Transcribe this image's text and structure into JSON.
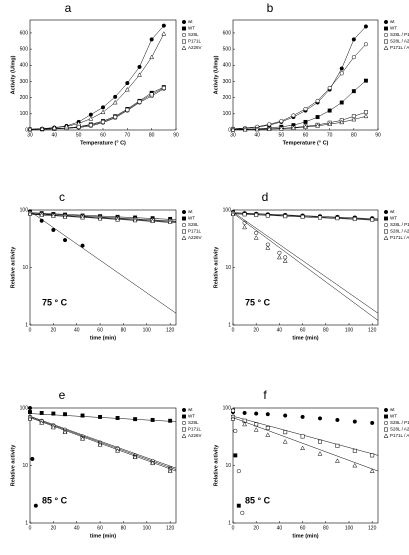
{
  "chart_data": [
    {
      "type": "line",
      "title": "a",
      "xlabel": "Temperature (° C)",
      "ylabel": "Activity (U/mg)",
      "x": [
        30,
        35,
        40,
        45,
        50,
        55,
        60,
        65,
        70,
        75,
        80,
        85
      ],
      "xlim": [
        30,
        90
      ],
      "xticks": [
        30,
        40,
        50,
        60,
        70,
        80,
        90
      ],
      "ylim": [
        0,
        680
      ],
      "yticks": [
        0,
        100,
        200,
        300,
        400,
        500,
        600
      ],
      "series": [
        {
          "name": "wt",
          "marker": "circle-filled",
          "color": "#000000",
          "values": [
            5,
            8,
            15,
            25,
            50,
            95,
            140,
            205,
            290,
            390,
            560,
            645
          ]
        },
        {
          "name": "WT",
          "marker": "square-filled",
          "color": "#000000",
          "values": [
            3,
            5,
            8,
            12,
            20,
            35,
            55,
            85,
            130,
            180,
            230,
            265
          ]
        },
        {
          "name": "S28L",
          "marker": "circle-open",
          "color": "#000000",
          "values": [
            3,
            5,
            7,
            10,
            15,
            25,
            45,
            75,
            120,
            170,
            210,
            255
          ]
        },
        {
          "name": "P171L",
          "marker": "square-open",
          "color": "#000000",
          "values": [
            3,
            5,
            8,
            12,
            20,
            30,
            50,
            80,
            125,
            175,
            220,
            260
          ]
        },
        {
          "name": "A226V",
          "marker": "triangle-open",
          "color": "#000000",
          "values": [
            5,
            8,
            14,
            22,
            40,
            70,
            110,
            170,
            250,
            340,
            450,
            595
          ]
        }
      ]
    },
    {
      "type": "line",
      "title": "b",
      "xlabel": "Temperature (° C)",
      "ylabel": "Activity (U/mg)",
      "x": [
        30,
        35,
        40,
        45,
        50,
        55,
        60,
        65,
        70,
        75,
        80,
        85
      ],
      "xlim": [
        30,
        90
      ],
      "xticks": [
        30,
        40,
        50,
        60,
        70,
        80,
        90
      ],
      "ylim": [
        0,
        680
      ],
      "yticks": [
        0,
        100,
        200,
        300,
        400,
        500,
        600
      ],
      "series": [
        {
          "name": "wt",
          "marker": "circle-filled",
          "color": "#000000",
          "values": [
            5,
            10,
            18,
            30,
            50,
            80,
            120,
            170,
            250,
            380,
            560,
            640
          ]
        },
        {
          "name": "WT",
          "marker": "square-filled",
          "color": "#000000",
          "values": [
            3,
            5,
            8,
            12,
            20,
            30,
            50,
            80,
            120,
            170,
            240,
            305
          ]
        },
        {
          "name": "S28L / P171L",
          "marker": "circle-open",
          "color": "#000000",
          "values": [
            8,
            12,
            20,
            35,
            55,
            90,
            130,
            180,
            260,
            350,
            450,
            530
          ]
        },
        {
          "name": "S28L / A226V",
          "marker": "square-open",
          "color": "#000000",
          "values": [
            2,
            3,
            5,
            7,
            10,
            15,
            22,
            32,
            45,
            60,
            85,
            110
          ]
        },
        {
          "name": "P171L / A226V",
          "marker": "triangle-open",
          "color": "#000000",
          "values": [
            2,
            3,
            4,
            6,
            8,
            12,
            18,
            26,
            36,
            48,
            65,
            85
          ]
        }
      ]
    },
    {
      "type": "scatter",
      "title": "c",
      "xlabel": "time (min)",
      "ylabel": "Relative activity",
      "annotation": "75 ° C",
      "yscale": "log",
      "xlim": [
        0,
        125
      ],
      "xticks": [
        0,
        20,
        40,
        60,
        80,
        100,
        120
      ],
      "ylim": [
        1,
        100
      ],
      "yticks": [
        1,
        10,
        100
      ],
      "series": [
        {
          "name": "wt",
          "marker": "circle-filled",
          "color": "#000000",
          "x": [
            0,
            10,
            20,
            30,
            45
          ],
          "values": [
            95,
            65,
            45,
            30,
            24
          ],
          "fit": [
            95,
            1.6
          ]
        },
        {
          "name": "WT",
          "marker": "square-filled",
          "color": "#000000",
          "x": [
            0,
            10,
            20,
            30,
            45,
            60,
            75,
            90,
            105,
            120
          ],
          "values": [
            92,
            88,
            85,
            83,
            80,
            78,
            76,
            74,
            72,
            70
          ],
          "fit": [
            90,
            68
          ]
        },
        {
          "name": "S28L",
          "marker": "circle-open",
          "color": "#000000",
          "x": [
            0,
            10,
            20,
            30,
            45,
            60,
            75,
            90,
            105,
            120
          ],
          "values": [
            90,
            86,
            82,
            80,
            78,
            75,
            72,
            70,
            68,
            66
          ],
          "fit": [
            88,
            64
          ]
        },
        {
          "name": "P171L",
          "marker": "square-open",
          "color": "#000000",
          "x": [
            0,
            10,
            20,
            30,
            45,
            60,
            75,
            90,
            105,
            120
          ],
          "values": [
            88,
            84,
            80,
            78,
            76,
            73,
            70,
            68,
            66,
            64
          ],
          "fit": [
            86,
            62
          ]
        },
        {
          "name": "A226V",
          "marker": "triangle-open",
          "color": "#000000",
          "x": [
            0,
            10,
            20,
            30,
            45,
            60,
            75,
            90,
            105,
            120
          ],
          "values": [
            86,
            82,
            79,
            76,
            74,
            71,
            68,
            66,
            64,
            62
          ],
          "fit": [
            84,
            60
          ]
        }
      ]
    },
    {
      "type": "scatter",
      "title": "d",
      "xlabel": "time (min)",
      "ylabel": "Relative activity",
      "annotation": "75 ° C",
      "yscale": "log",
      "xlim": [
        0,
        125
      ],
      "xticks": [
        0,
        20,
        40,
        60,
        80,
        100,
        120
      ],
      "ylim": [
        1,
        100
      ],
      "yticks": [
        1,
        10,
        100
      ],
      "series": [
        {
          "name": "wt",
          "marker": "circle-filled",
          "color": "#000000",
          "x": [
            0,
            10,
            20,
            30,
            45,
            60,
            75,
            90,
            105,
            120
          ],
          "values": [
            92,
            88,
            86,
            84,
            82,
            80,
            78,
            76,
            74,
            72
          ],
          "fit": [
            90,
            70
          ]
        },
        {
          "name": "WT",
          "marker": "square-filled",
          "color": "#000000",
          "x": [
            0,
            10,
            20,
            30,
            45,
            60,
            75,
            90,
            105,
            120
          ],
          "values": [
            90,
            86,
            84,
            82,
            80,
            78,
            76,
            74,
            72,
            70
          ],
          "fit": [
            88,
            68
          ]
        },
        {
          "name": "S28L / P171L",
          "marker": "circle-open",
          "color": "#000000",
          "x": [
            0,
            10,
            20,
            30,
            40,
            45
          ],
          "values": [
            90,
            60,
            40,
            25,
            18,
            15
          ],
          "fit": [
            92,
            1.6
          ]
        },
        {
          "name": "S28L / A226V",
          "marker": "square-open",
          "color": "#000000",
          "x": [
            0,
            10,
            20,
            30,
            45,
            60,
            75,
            90,
            105,
            120
          ],
          "values": [
            88,
            84,
            82,
            80,
            78,
            76,
            74,
            72,
            70,
            68
          ],
          "fit": [
            86,
            66
          ]
        },
        {
          "name": "P171L / A226V",
          "marker": "triangle-open",
          "color": "#000000",
          "x": [
            0,
            10,
            20,
            30,
            40,
            45
          ],
          "values": [
            85,
            50,
            33,
            22,
            15,
            13
          ],
          "fit": [
            88,
            1.2
          ]
        }
      ]
    },
    {
      "type": "scatter",
      "title": "e",
      "xlabel": "time (min)",
      "ylabel": "Relative activity",
      "annotation": "85 ° C",
      "yscale": "log",
      "xlim": [
        0,
        125
      ],
      "xticks": [
        0,
        20,
        40,
        60,
        80,
        100,
        120
      ],
      "ylim": [
        1,
        100
      ],
      "yticks": [
        1,
        10,
        100
      ],
      "series": [
        {
          "name": "wt",
          "marker": "circle-filled",
          "color": "#000000",
          "x": [
            0,
            2,
            5
          ],
          "values": [
            100,
            13,
            2
          ]
        },
        {
          "name": "WT",
          "marker": "square-filled",
          "color": "#000000",
          "x": [
            0,
            10,
            20,
            30,
            45,
            60,
            75,
            90,
            105,
            120
          ],
          "values": [
            85,
            82,
            80,
            78,
            74,
            70,
            67,
            64,
            62,
            60
          ],
          "fit": [
            80,
            58
          ]
        },
        {
          "name": "S28L",
          "marker": "circle-open",
          "color": "#000000",
          "x": [
            0,
            10,
            20,
            30,
            45,
            60,
            75,
            90,
            105,
            120
          ],
          "values": [
            70,
            60,
            50,
            42,
            32,
            25,
            20,
            15,
            12,
            9
          ],
          "fit": [
            72,
            9
          ]
        },
        {
          "name": "P171L",
          "marker": "square-open",
          "color": "#000000",
          "x": [
            0,
            10,
            20,
            30,
            45,
            60,
            75,
            90,
            105,
            120
          ],
          "values": [
            68,
            58,
            48,
            40,
            30,
            24,
            19,
            14,
            11,
            8.5
          ],
          "fit": [
            70,
            8.5
          ]
        },
        {
          "name": "A226V",
          "marker": "triangle-open",
          "color": "#000000",
          "x": [
            0,
            10,
            20,
            30,
            45,
            60,
            75,
            90,
            105,
            120
          ],
          "values": [
            65,
            55,
            46,
            38,
            29,
            23,
            18,
            14,
            11,
            8
          ],
          "fit": [
            68,
            8
          ]
        }
      ]
    },
    {
      "type": "scatter",
      "title": "f",
      "xlabel": "time (min)",
      "ylabel": "Relative activity",
      "annotation": "85 ° C",
      "yscale": "log",
      "xlim": [
        0,
        125
      ],
      "xticks": [
        0,
        20,
        40,
        60,
        80,
        100,
        120
      ],
      "ylim": [
        1,
        100
      ],
      "yticks": [
        1,
        10,
        100
      ],
      "series": [
        {
          "name": "wt",
          "marker": "circle-filled",
          "color": "#000000",
          "x": [
            0,
            10,
            20,
            30,
            45,
            60,
            75,
            90,
            105,
            120
          ],
          "values": [
            85,
            82,
            80,
            78,
            74,
            70,
            66,
            62,
            58,
            55
          ]
        },
        {
          "name": "WT",
          "marker": "square-filled",
          "color": "#000000",
          "x": [
            0,
            2,
            5
          ],
          "values": [
            90,
            15,
            2
          ]
        },
        {
          "name": "S28L / P171L",
          "marker": "circle-open",
          "color": "#000000",
          "x": [
            0,
            2,
            5,
            8
          ],
          "values": [
            90,
            40,
            8,
            1.5
          ]
        },
        {
          "name": "S28L / A226V",
          "marker": "square-open",
          "color": "#000000",
          "x": [
            0,
            10,
            20,
            30,
            45,
            60,
            75,
            90,
            105,
            120
          ],
          "values": [
            70,
            60,
            52,
            45,
            38,
            32,
            26,
            22,
            18,
            15
          ],
          "fit": [
            72,
            15
          ]
        },
        {
          "name": "P171L / A226V",
          "marker": "triangle-open",
          "color": "#000000",
          "x": [
            0,
            10,
            20,
            30,
            45,
            60,
            75,
            90,
            105,
            120
          ],
          "values": [
            65,
            52,
            42,
            34,
            26,
            20,
            16,
            12,
            10,
            8
          ],
          "fit": [
            68,
            8
          ]
        }
      ]
    }
  ]
}
